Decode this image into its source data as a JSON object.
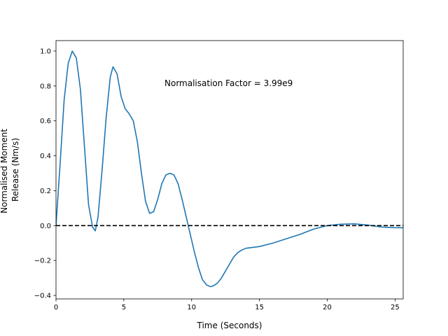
{
  "chart_data": {
    "type": "line",
    "title": "",
    "xlabel": "Time (Seconds)",
    "ylabel_lines": [
      "Normalised Moment",
      "Release (Nm/s)"
    ],
    "xlim": [
      0,
      25.6
    ],
    "ylim": [
      -0.42,
      1.06
    ],
    "x_ticks": [
      0,
      5,
      10,
      15,
      20,
      25
    ],
    "y_ticks": [
      1.0,
      0.8,
      0.6,
      0.4,
      0.2,
      0.0,
      -0.2,
      -0.4
    ],
    "y_tick_labels": [
      "1.0",
      "0.8",
      "0.6",
      "0.4",
      "0.2",
      "0.0",
      "−0.2",
      "−0.4"
    ],
    "grid": false,
    "annotation": "Normalisation Factor = 3.99e9",
    "reference_line": {
      "y": 0.0,
      "style": "dashed",
      "color": "#000000"
    },
    "series": [
      {
        "color": "#1f77b4",
        "x": [
          0,
          0.3,
          0.6,
          0.9,
          1.2,
          1.5,
          1.8,
          2.1,
          2.4,
          2.7,
          2.9,
          3.1,
          3.4,
          3.7,
          4.0,
          4.2,
          4.5,
          4.8,
          5.1,
          5.4,
          5.7,
          6.0,
          6.3,
          6.6,
          6.9,
          7.2,
          7.5,
          7.8,
          8.1,
          8.4,
          8.7,
          9.0,
          9.3,
          9.6,
          9.9,
          10.2,
          10.5,
          10.8,
          11.1,
          11.4,
          11.6,
          11.9,
          12.2,
          12.5,
          12.8,
          13.1,
          13.4,
          13.7,
          14.0,
          14.5,
          15.0,
          16.0,
          17.0,
          18.0,
          19.0,
          20.0,
          21.0,
          22.0,
          23.0,
          24.0,
          25.0,
          25.6
        ],
        "values": [
          0.0,
          0.35,
          0.72,
          0.93,
          1.0,
          0.96,
          0.78,
          0.45,
          0.12,
          -0.01,
          -0.03,
          0.05,
          0.32,
          0.62,
          0.85,
          0.91,
          0.87,
          0.74,
          0.67,
          0.64,
          0.6,
          0.48,
          0.3,
          0.14,
          0.07,
          0.08,
          0.15,
          0.24,
          0.29,
          0.3,
          0.29,
          0.24,
          0.15,
          0.05,
          -0.05,
          -0.15,
          -0.24,
          -0.31,
          -0.34,
          -0.35,
          -0.345,
          -0.33,
          -0.3,
          -0.26,
          -0.22,
          -0.18,
          -0.155,
          -0.14,
          -0.13,
          -0.125,
          -0.12,
          -0.1,
          -0.075,
          -0.05,
          -0.02,
          0.0,
          0.008,
          0.01,
          0.003,
          -0.008,
          -0.012,
          -0.012
        ]
      }
    ]
  }
}
